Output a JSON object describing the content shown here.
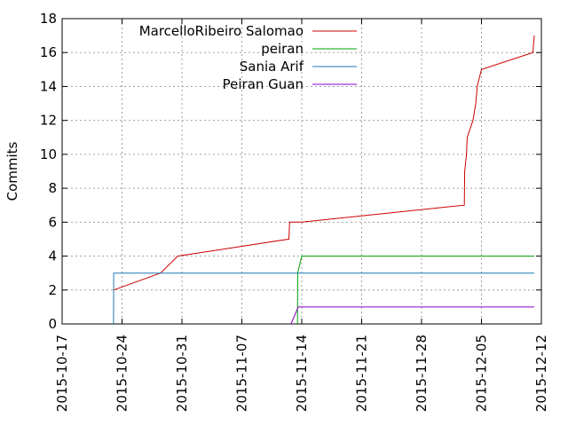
{
  "chart_data": {
    "type": "line",
    "title": "",
    "xlabel": "",
    "ylabel": "Commits",
    "x_ticks": [
      "2015-10-17",
      "2015-10-24",
      "2015-10-31",
      "2015-11-07",
      "2015-11-14",
      "2015-11-21",
      "2015-11-28",
      "2015-12-05",
      "2015-12-12"
    ],
    "xlim": [
      "2015-10-17",
      "2015-12-12"
    ],
    "ylim": [
      0,
      18
    ],
    "y_ticks": [
      0,
      2,
      4,
      6,
      8,
      10,
      12,
      14,
      16,
      18
    ],
    "grid": true,
    "legend_position": "top-left",
    "series": [
      {
        "name": "MarcelloRibeiro Salomao",
        "color": "#cc0000",
        "points": [
          [
            "2015-10-23T00:00",
            2
          ],
          [
            "2015-10-28T12:00",
            3
          ],
          [
            "2015-10-30T12:00",
            4
          ],
          [
            "2015-11-12T12:00",
            5
          ],
          [
            "2015-11-12T14:00",
            6
          ],
          [
            "2015-11-14T00:00",
            6
          ],
          [
            "2015-12-03T00:00",
            7
          ],
          [
            "2015-12-03T01:00",
            9
          ],
          [
            "2015-12-03T06:00",
            10
          ],
          [
            "2015-12-03T08:00",
            11
          ],
          [
            "2015-12-04T00:00",
            12
          ],
          [
            "2015-12-04T08:00",
            13
          ],
          [
            "2015-12-04T12:00",
            14
          ],
          [
            "2015-12-05T00:00",
            15
          ],
          [
            "2015-12-11T00:00",
            16
          ],
          [
            "2015-12-11T04:00",
            17
          ]
        ]
      },
      {
        "name": "peiran",
        "color": "#00a000",
        "points": [
          [
            "2015-11-13T12:00",
            0
          ],
          [
            "2015-11-13T12:30",
            3
          ],
          [
            "2015-11-14T00:00",
            4
          ],
          [
            "2015-12-11T04:00",
            4
          ]
        ]
      },
      {
        "name": "Sania Arif",
        "color": "#1f78b4",
        "points": [
          [
            "2015-10-23T00:00",
            0
          ],
          [
            "2015-10-23T00:30",
            3
          ],
          [
            "2015-12-11T04:00",
            3
          ]
        ]
      },
      {
        "name": "Peiran Guan",
        "color": "#8a00c8",
        "points": [
          [
            "2015-11-12T18:00",
            0
          ],
          [
            "2015-11-13T14:00",
            1
          ],
          [
            "2015-12-11T04:00",
            1
          ]
        ]
      }
    ]
  }
}
